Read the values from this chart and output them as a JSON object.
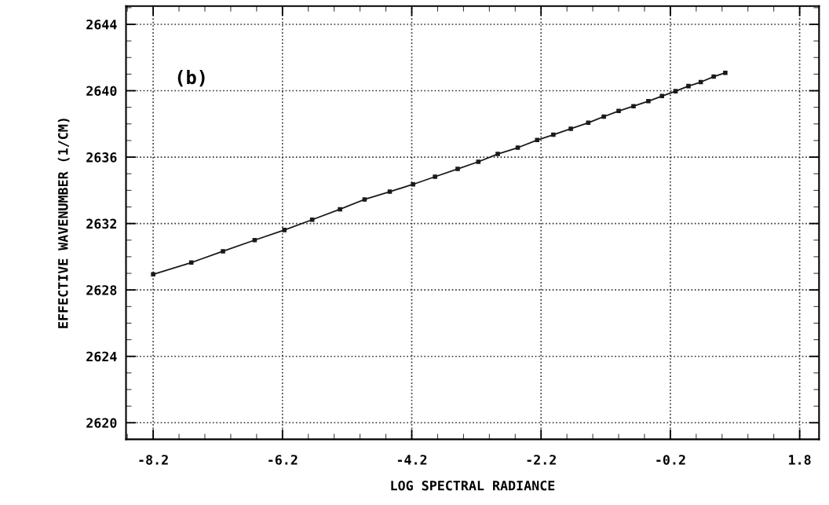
{
  "chart_data": {
    "type": "line",
    "xlabel": "LOG SPECTRAL RADIANCE",
    "ylabel": "EFFECTIVE WAVENUMBER (1/CM)",
    "annotations": [
      "(b)"
    ],
    "xlim": [
      -8.62,
      2.1
    ],
    "xticks": [
      -8.2,
      -6.2,
      -4.2,
      -2.2,
      -0.2,
      1.8
    ],
    "ylim": [
      2619,
      2645.1
    ],
    "yticks": [
      2620,
      2624,
      2628,
      2632,
      2636,
      2640,
      2644
    ],
    "grid": true,
    "marker": "square",
    "line_style": "solid",
    "series": [
      {
        "color": "#1a1a1a",
        "x": [
          -8.2,
          -7.61,
          -7.12,
          -6.63,
          -6.17,
          -5.74,
          -5.31,
          -4.93,
          -4.54,
          -4.18,
          -3.84,
          -3.49,
          -3.17,
          -2.87,
          -2.56,
          -2.26,
          -2.01,
          -1.74,
          -1.47,
          -1.23,
          -1.0,
          -0.77,
          -0.54,
          -0.33,
          -0.12,
          0.08,
          0.27,
          0.47,
          0.65
        ],
        "values": [
          2628.94,
          2629.65,
          2630.33,
          2631.0,
          2631.61,
          2632.23,
          2632.86,
          2633.45,
          2633.92,
          2634.36,
          2634.82,
          2635.29,
          2635.72,
          2636.19,
          2636.57,
          2637.03,
          2637.35,
          2637.71,
          2638.07,
          2638.44,
          2638.78,
          2639.07,
          2639.37,
          2639.68,
          2639.97,
          2640.28,
          2640.52,
          2640.85,
          2641.08
        ]
      }
    ]
  }
}
